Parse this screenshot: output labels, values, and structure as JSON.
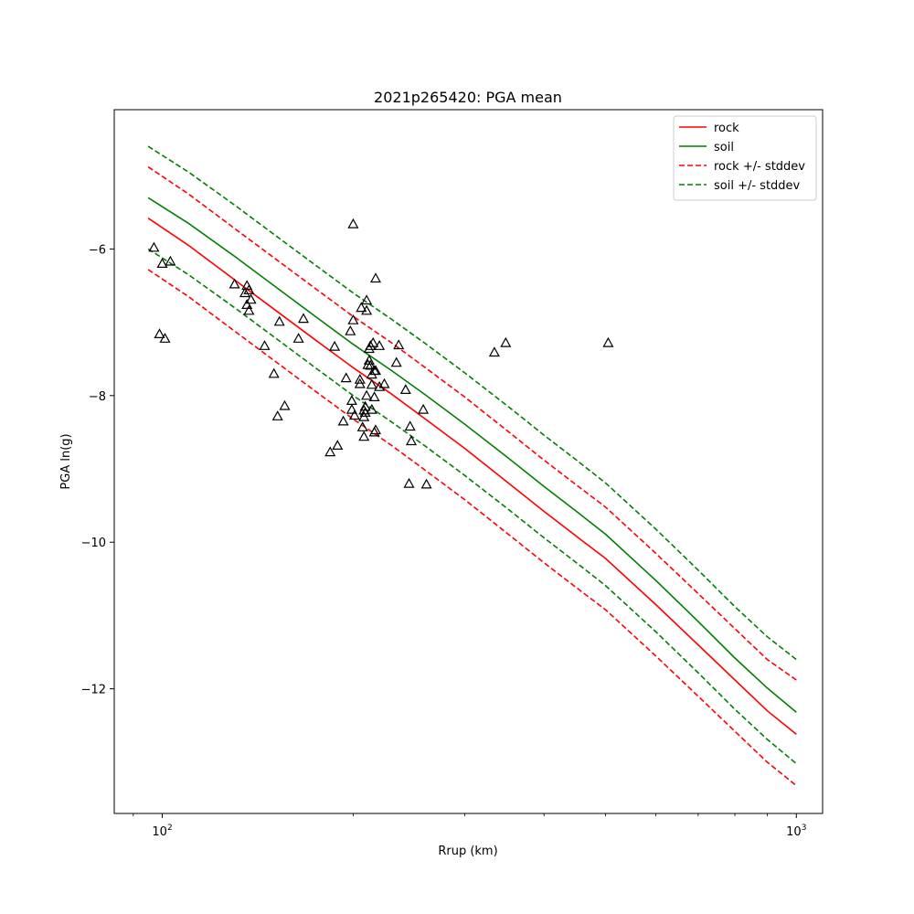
{
  "chart_data": {
    "type": "scatter",
    "title": "2021p265420: PGA mean",
    "xlabel": "Rrup (km)",
    "ylabel": "PGA ln(g)",
    "xscale": "log",
    "xlim": [
      84,
      1100
    ],
    "ylim": [
      -13.7,
      -4.1
    ],
    "x_ticks": [
      {
        "value": 100,
        "base": "10",
        "exp": "2"
      },
      {
        "value": 1000,
        "base": "10",
        "exp": "3"
      }
    ],
    "y_ticks": [
      {
        "value": -6,
        "label": "−6"
      },
      {
        "value": -8,
        "label": "−8"
      },
      {
        "value": -10,
        "label": "−10"
      },
      {
        "value": -12,
        "label": "−12"
      }
    ],
    "legend_position": "top-right",
    "series": [
      {
        "name": "rock",
        "color": "#ff0000",
        "style": "solid",
        "x": [
          95,
          110,
          130,
          150,
          175,
          200,
          230,
          260,
          300,
          350,
          400,
          450,
          500,
          600,
          700,
          800,
          900,
          1000
        ],
        "y": [
          -5.58,
          -5.95,
          -6.42,
          -6.82,
          -7.25,
          -7.62,
          -7.98,
          -8.32,
          -8.72,
          -9.18,
          -9.58,
          -9.92,
          -10.22,
          -10.85,
          -11.4,
          -11.88,
          -12.3,
          -12.62
        ]
      },
      {
        "name": "soil",
        "color": "#008000",
        "style": "solid",
        "x": [
          95,
          110,
          130,
          150,
          175,
          200,
          230,
          260,
          300,
          350,
          400,
          450,
          500,
          600,
          700,
          800,
          900,
          1000
        ],
        "y": [
          -5.3,
          -5.65,
          -6.1,
          -6.5,
          -6.93,
          -7.3,
          -7.66,
          -7.99,
          -8.39,
          -8.84,
          -9.24,
          -9.58,
          -9.89,
          -10.52,
          -11.08,
          -11.58,
          -11.99,
          -12.32
        ]
      },
      {
        "name": "rock +/- stddev",
        "color": "#ff0000",
        "style": "dashed",
        "x": [
          95,
          110,
          130,
          150,
          175,
          200,
          230,
          260,
          300,
          350,
          400,
          450,
          500,
          600,
          700,
          800,
          900,
          1000
        ],
        "y": [
          -4.88,
          -5.25,
          -5.72,
          -6.12,
          -6.55,
          -6.92,
          -7.28,
          -7.62,
          -8.02,
          -8.48,
          -8.88,
          -9.22,
          -9.52,
          -10.15,
          -10.7,
          -11.18,
          -11.6,
          -11.88
        ]
      },
      {
        "name": "",
        "color": "#ff0000",
        "style": "dashed",
        "x": [
          95,
          110,
          130,
          150,
          175,
          200,
          230,
          260,
          300,
          350,
          400,
          450,
          500,
          600,
          700,
          800,
          900,
          1000
        ],
        "y": [
          -6.28,
          -6.65,
          -7.12,
          -7.52,
          -7.95,
          -8.32,
          -8.68,
          -9.02,
          -9.42,
          -9.88,
          -10.28,
          -10.62,
          -10.92,
          -11.55,
          -12.1,
          -12.58,
          -13.0,
          -13.32
        ]
      },
      {
        "name": "soil +/- stddev",
        "color": "#008000",
        "style": "dashed",
        "x": [
          95,
          110,
          130,
          150,
          175,
          200,
          230,
          260,
          300,
          350,
          400,
          450,
          500,
          600,
          700,
          800,
          900,
          1000
        ],
        "y": [
          -4.6,
          -4.95,
          -5.4,
          -5.8,
          -6.23,
          -6.6,
          -6.96,
          -7.29,
          -7.69,
          -8.14,
          -8.54,
          -8.88,
          -9.19,
          -9.82,
          -10.38,
          -10.88,
          -11.29,
          -11.6
        ]
      },
      {
        "name": "",
        "color": "#008000",
        "style": "dashed",
        "x": [
          95,
          110,
          130,
          150,
          175,
          200,
          230,
          260,
          300,
          350,
          400,
          450,
          500,
          600,
          700,
          800,
          900,
          1000
        ],
        "y": [
          -6.0,
          -6.35,
          -6.8,
          -7.2,
          -7.63,
          -8.0,
          -8.36,
          -8.69,
          -9.09,
          -9.54,
          -9.94,
          -10.28,
          -10.59,
          -11.22,
          -11.78,
          -12.28,
          -12.69,
          -13.02
        ]
      }
    ],
    "observations": {
      "marker": "triangle-open",
      "color": "#000000",
      "x": [
        97,
        99,
        100,
        101,
        103,
        130,
        135,
        136,
        136,
        137,
        137,
        138,
        145,
        150,
        152,
        153,
        156,
        164,
        167,
        184,
        187,
        189,
        193,
        195,
        198,
        199,
        199,
        200,
        200,
        201,
        205,
        205,
        206,
        207,
        208,
        208,
        208,
        209,
        209,
        210,
        210,
        210,
        211,
        212,
        212,
        213,
        213,
        214,
        214,
        214,
        215,
        216,
        216,
        216,
        217,
        217,
        217,
        220,
        220,
        224,
        234,
        236,
        242,
        245,
        246,
        247,
        258,
        261,
        334,
        348,
        505
      ],
      "y": [
        -5.98,
        -7.16,
        -6.2,
        -7.22,
        -6.17,
        -6.48,
        -6.6,
        -6.76,
        -6.5,
        -6.56,
        -6.84,
        -6.69,
        -7.32,
        -7.7,
        -8.28,
        -6.99,
        -8.14,
        -7.22,
        -6.95,
        -8.77,
        -7.33,
        -8.68,
        -8.35,
        -7.76,
        -7.12,
        -8.07,
        -8.19,
        -5.66,
        -6.97,
        -8.27,
        -7.78,
        -7.84,
        -6.8,
        -8.43,
        -8.29,
        -8.2,
        -8.56,
        -8.23,
        -8.15,
        -8.0,
        -6.7,
        -6.84,
        -7.58,
        -7.36,
        -7.52,
        -7.32,
        -7.59,
        -8.19,
        -7.85,
        -7.71,
        -7.28,
        -7.66,
        -8.02,
        -8.5,
        -6.4,
        -8.47,
        -7.66,
        -7.32,
        -7.88,
        -7.84,
        -7.55,
        -7.31,
        -7.92,
        -9.2,
        -8.42,
        -8.62,
        -8.19,
        -9.21,
        -7.41,
        -7.28,
        -7.28
      ]
    }
  }
}
